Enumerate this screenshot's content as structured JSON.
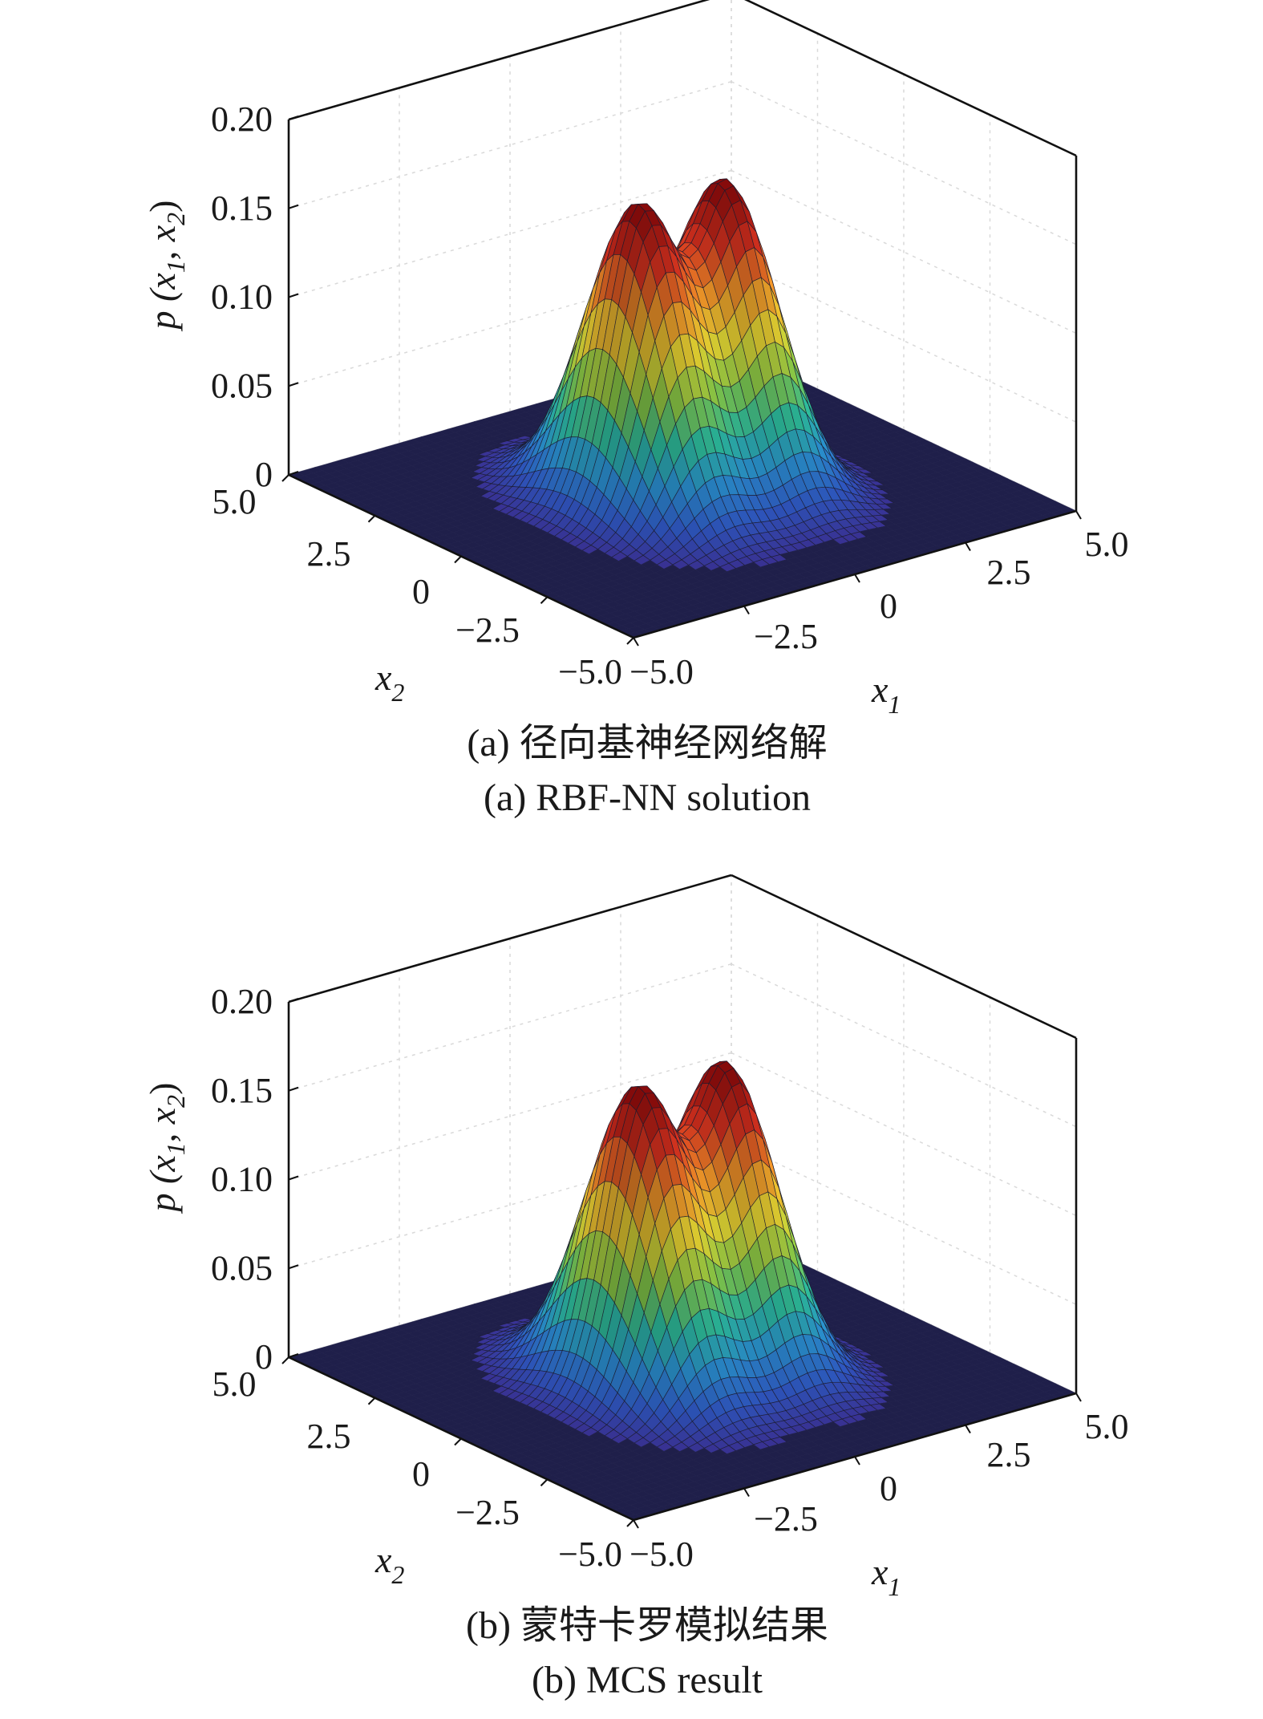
{
  "colormap": [
    "#3b2a8a",
    "#2f56c0",
    "#2a8fd0",
    "#2dbfa0",
    "#8ad04a",
    "#f0e035",
    "#f89a2a",
    "#d8311f",
    "#8a0b0b"
  ],
  "floor_color": "#1f1f4a",
  "chart_data": [
    {
      "type": "surface3d",
      "caption_cn": "(a) 径向基神经网络解",
      "caption_en": "(a) RBF-NN solution",
      "xlabel": "x",
      "xlabel_sub": "1",
      "ylabel": "x",
      "ylabel_sub": "2",
      "zlabel": "p (x1, x2)",
      "z_label_parts": [
        "p (",
        "x",
        "1",
        ", ",
        "x",
        "2",
        ")"
      ],
      "xlim": [
        -5.0,
        5.0
      ],
      "ylim": [
        -5.0,
        5.0
      ],
      "zlim": [
        0,
        0.2
      ],
      "x_ticks": [
        "−5.0",
        "−2.5",
        "0",
        "2.5",
        "5.0"
      ],
      "y_ticks": [
        "−5.0",
        "−2.5",
        "0",
        "2.5",
        "5.0"
      ],
      "z_ticks": [
        "0",
        "0.05",
        "0.10",
        "0.15",
        "0.20"
      ],
      "grid": true,
      "peaks": [
        {
          "x1": -1.0,
          "x2": 0.0,
          "p": 0.165
        },
        {
          "x1": 1.0,
          "x2": 0.0,
          "p": 0.165
        }
      ]
    },
    {
      "type": "surface3d",
      "caption_cn": "(b) 蒙特卡罗模拟结果",
      "caption_en": "(b) MCS result",
      "xlabel": "x",
      "xlabel_sub": "1",
      "ylabel": "x",
      "ylabel_sub": "2",
      "zlabel": "p (x1, x2)",
      "z_label_parts": [
        "p (",
        "x",
        "1",
        ", ",
        "x",
        "2",
        ")"
      ],
      "xlim": [
        -5.0,
        5.0
      ],
      "ylim": [
        -5.0,
        5.0
      ],
      "zlim": [
        0,
        0.2
      ],
      "x_ticks": [
        "−5.0",
        "−2.5",
        "0",
        "2.5",
        "5.0"
      ],
      "y_ticks": [
        "−5.0",
        "−2.5",
        "0",
        "2.5",
        "5.0"
      ],
      "z_ticks": [
        "0",
        "0.05",
        "0.10",
        "0.15",
        "0.20"
      ],
      "grid": true,
      "peaks": [
        {
          "x1": -1.0,
          "x2": 0.0,
          "p": 0.165
        },
        {
          "x1": 1.0,
          "x2": 0.0,
          "p": 0.165
        }
      ]
    }
  ]
}
